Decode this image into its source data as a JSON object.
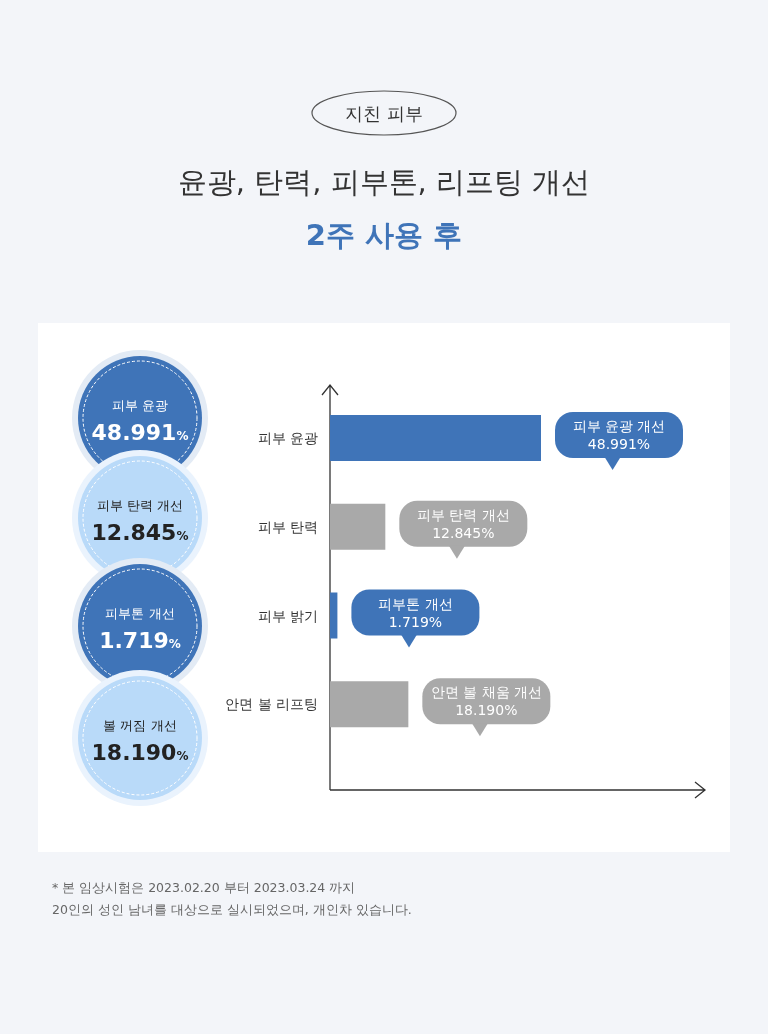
{
  "chart_data": {
    "type": "bar",
    "orientation": "horizontal",
    "title": "윤광, 탄력, 피부톤, 리프팅 개선",
    "subtitle": "2주 사용 후",
    "categories": [
      "피부 윤광",
      "피부 탄력",
      "피부 밝기",
      "안면 볼 리프팅"
    ],
    "values": [
      48.991,
      12.845,
      1.719,
      18.19
    ],
    "colors": [
      "#3f74b8",
      "#a9a9a9",
      "#3f74b8",
      "#a9a9a9"
    ],
    "value_labels": [
      "피부 윤광 개선\n48.991%",
      "피부 탄력 개선\n12.845%",
      "피부톤 개선\n1.719%",
      "안면 볼 채움 개선\n18.190%"
    ],
    "annotations": [
      "지친 피부",
      "피부 윤광\n48.991%",
      "피부 탄력 개선\n12.845%",
      "피부톤 개선\n1.719%",
      "볼 꺼짐 개선\n18.190%",
      "*  본 임상시험은 2023.02.20 부터 2023.03.24 까지",
      "20인의 성인 남녀를 대상으로 실시되었으며, 개인차 있습니다."
    ]
  }
}
